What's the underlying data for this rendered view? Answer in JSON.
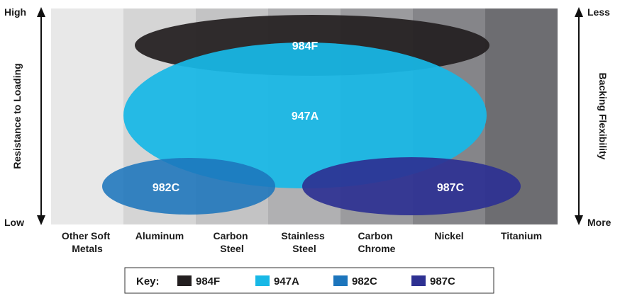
{
  "materials": [
    {
      "id": "other-soft-metals",
      "lines": [
        "Other Soft",
        "Metals"
      ],
      "color": "#e8e8e8"
    },
    {
      "id": "aluminum",
      "lines": [
        "Aluminum"
      ],
      "color": "#d5d5d5"
    },
    {
      "id": "carbon-steel",
      "lines": [
        "Carbon",
        "Steel"
      ],
      "color": "#c3c3c4"
    },
    {
      "id": "stainless-steel",
      "lines": [
        "Stainless",
        "Steel"
      ],
      "color": "#b0b0b2"
    },
    {
      "id": "carbon-chrome",
      "lines": [
        "Carbon",
        "Chrome"
      ],
      "color": "#9b9b9e"
    },
    {
      "id": "nickel",
      "lines": [
        "Nickel"
      ],
      "color": "#858589"
    },
    {
      "id": "titanium",
      "lines": [
        "Titanium"
      ],
      "color": "#6d6d71"
    }
  ],
  "left_axis": {
    "title": "Resistance to Loading",
    "top": "High",
    "bottom": "Low"
  },
  "right_axis": {
    "title": "Backing Flexibility",
    "top": "Less",
    "bottom": "More"
  },
  "products": [
    {
      "name": "984F",
      "color": "#231f20"
    },
    {
      "name": "947A",
      "color": "#18b8e6"
    },
    {
      "name": "982C",
      "color": "#1c75bc"
    },
    {
      "name": "987C",
      "color": "#2e3192"
    }
  ],
  "key": {
    "label": "Key:"
  }
}
